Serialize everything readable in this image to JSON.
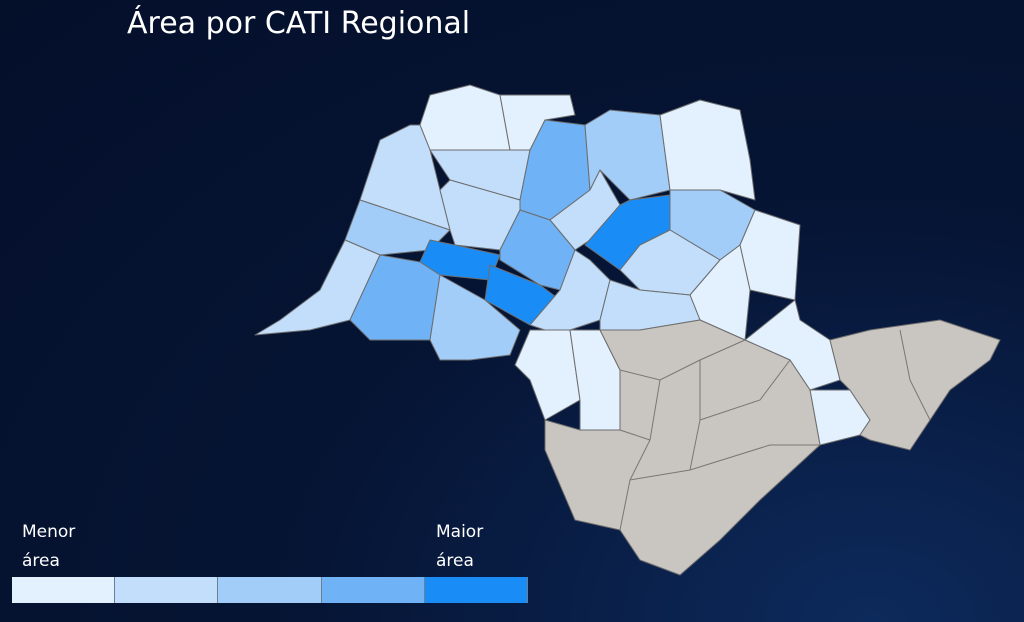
{
  "title": "Área por CATI Regional",
  "legend": {
    "low_label": "Menor área",
    "high_label": "Maior área",
    "colors": [
      "#e3f0fd",
      "#c2defb",
      "#a3cdf9",
      "#6fb2f5",
      "#1a8cf6"
    ]
  },
  "no_data_color": "#c9c5c1"
}
